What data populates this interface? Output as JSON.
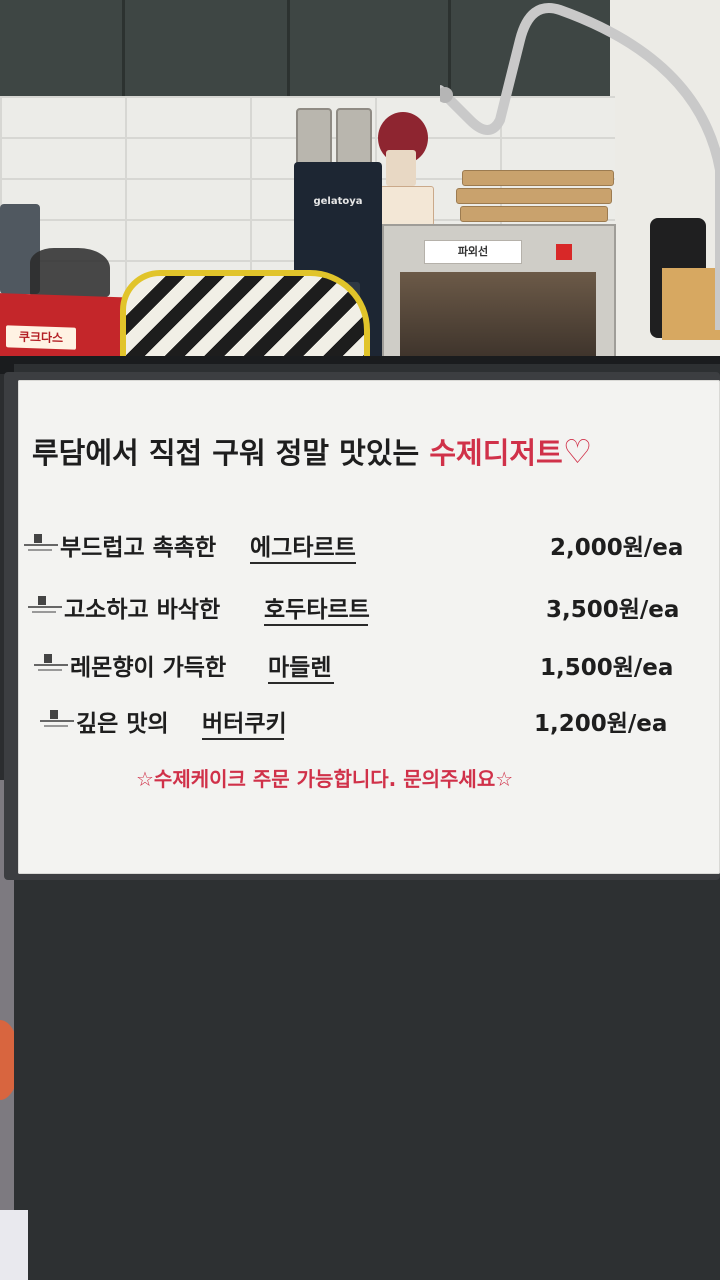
{
  "sign": {
    "headline_main": "루담에서 직접 구워 정말 맛있는 ",
    "headline_accent": "수제디저트",
    "heart": "♡",
    "items": [
      {
        "desc": "부드럽고 촉촉한",
        "name": "에그타르트",
        "price": "2,000원/ea"
      },
      {
        "desc": "고소하고 바삭한",
        "name": "호두타르트",
        "price": "3,500원/ea"
      },
      {
        "desc": "레몬향이 가득한",
        "name": "마들렌",
        "price": "1,500원/ea"
      },
      {
        "desc": "깊은 맛의",
        "name": "버터쿠키",
        "price": "1,200원/ea"
      }
    ],
    "footer": "☆수제케이크 주문 가능합니다. 문의주세요☆",
    "accent_color": "#d03149"
  },
  "background": {
    "machine_brand": "gelatoya",
    "display_brand": "파외선",
    "snack_label": "쿠크다스"
  }
}
